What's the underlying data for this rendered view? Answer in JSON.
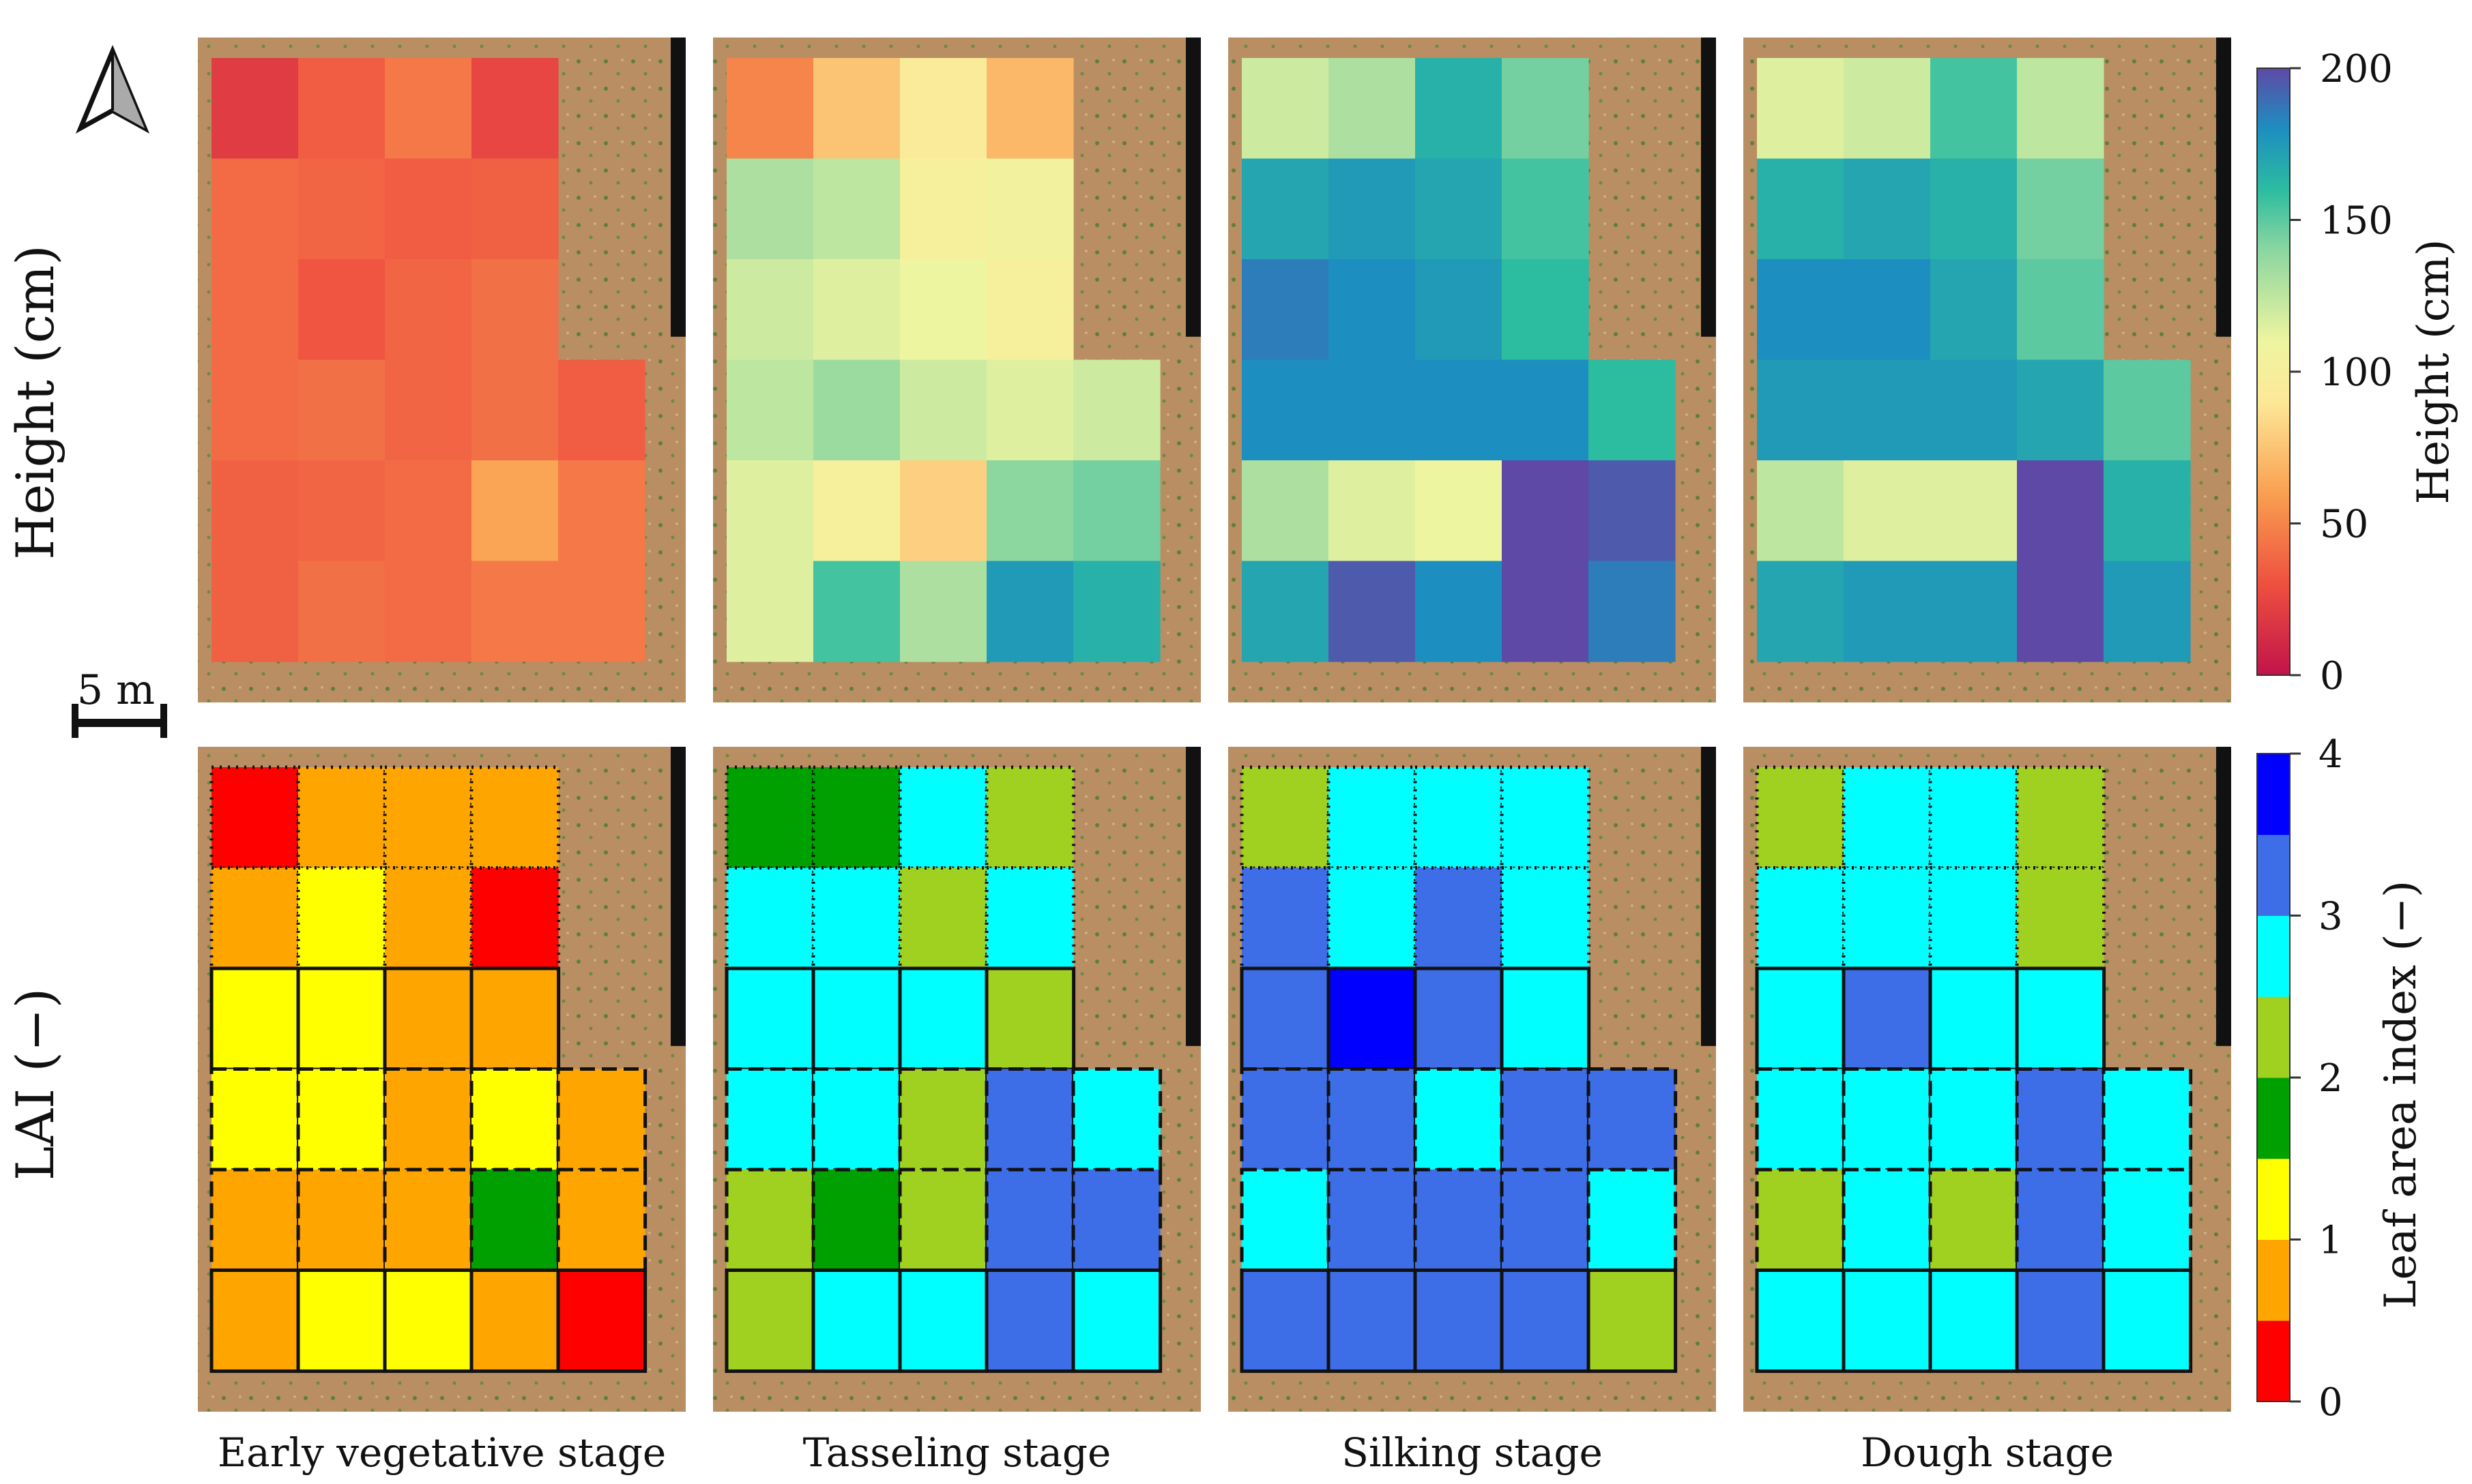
{
  "figure": {
    "row_labels": [
      "Height (cm)",
      "LAI (−)"
    ],
    "scale_bar_label": "5 m",
    "north_arrow": "north-arrow-icon"
  },
  "chart_data": [
    {
      "type": "heatmap",
      "title": "Height (cm)",
      "colorbar_label": "Height (cm)",
      "colorbar_ticks": [
        "0",
        "50",
        "100",
        "150",
        "200"
      ],
      "vlim": [
        0,
        200
      ],
      "colormap": "Spectral",
      "panels": [
        {
          "label": "Early vegetative stage",
          "grid": [
            [
              20,
              35,
              45,
              25
            ],
            [
              40,
              38,
              35,
              36
            ],
            [
              40,
              32,
              38,
              42
            ],
            [
              40,
              42,
              38,
              42,
              35
            ],
            [
              36,
              38,
              40,
              62,
              45
            ],
            [
              36,
              42,
              40,
              45,
              45
            ]
          ]
        },
        {
          "label": "Tasseling stage",
          "grid": [
            [
              50,
              75,
              95,
              70
            ],
            [
              130,
              125,
              100,
              105
            ],
            [
              120,
              115,
              110,
              100
            ],
            [
              125,
              135,
              120,
              115,
              120
            ],
            [
              115,
              100,
              80,
              140,
              145
            ],
            [
              115,
              155,
              130,
              175,
              165
            ]
          ]
        },
        {
          "label": "Silking stage",
          "grid": [
            [
              120,
              130,
              165,
              145
            ],
            [
              170,
              175,
              170,
              155
            ],
            [
              185,
              180,
              175,
              160
            ],
            [
              180,
              180,
              180,
              180,
              160
            ],
            [
              130,
              115,
              110,
              205,
              195
            ],
            [
              170,
              195,
              180,
              205,
              185
            ]
          ]
        },
        {
          "label": "Dough stage",
          "grid": [
            [
              115,
              120,
              155,
              125
            ],
            [
              165,
              170,
              165,
              145
            ],
            [
              180,
              180,
              170,
              150
            ],
            [
              175,
              175,
              175,
              170,
              150
            ],
            [
              125,
              115,
              115,
              200,
              165
            ],
            [
              170,
              175,
              175,
              205,
              175
            ]
          ]
        }
      ]
    },
    {
      "type": "heatmap",
      "title": "LAI (−)",
      "colorbar_label": "Leaf area index (−)",
      "colorbar_ticks": [
        "0",
        "1",
        "2",
        "3",
        "4"
      ],
      "vlim": [
        0,
        4
      ],
      "colormap_bins": [
        "#ff0000",
        "#ffa500",
        "#ffff00",
        "#00a000",
        "#a0d020",
        "#00ffff",
        "#3d6ee8",
        "#0000ff"
      ],
      "panels": [
        {
          "label": "Early vegetative stage",
          "grid": [
            [
              0.3,
              0.7,
              0.8,
              0.5
            ],
            [
              0.8,
              1.0,
              0.9,
              0.4
            ],
            [
              1.1,
              1.0,
              0.8,
              0.6
            ],
            [
              1.2,
              1.1,
              0.9,
              1.0,
              0.6
            ],
            [
              0.8,
              0.8,
              0.7,
              1.6,
              0.5
            ],
            [
              0.8,
              1.2,
              1.0,
              0.8,
              0.3
            ]
          ]
        },
        {
          "label": "Tasseling stage",
          "grid": [
            [
              1.8,
              1.6,
              2.8,
              2.4
            ],
            [
              2.8,
              2.6,
              2.0,
              2.6
            ],
            [
              2.6,
              2.8,
              2.7,
              2.4
            ],
            [
              2.6,
              2.5,
              2.2,
              3.0,
              2.8
            ],
            [
              2.4,
              1.9,
              2.2,
              3.0,
              3.0
            ],
            [
              2.4,
              2.7,
              2.6,
              3.0,
              2.6
            ]
          ]
        },
        {
          "label": "Silking stage",
          "grid": [
            [
              2.2,
              2.6,
              2.9,
              2.6
            ],
            [
              3.0,
              2.9,
              3.0,
              2.5
            ],
            [
              3.2,
              3.5,
              3.2,
              2.8
            ],
            [
              3.1,
              3.0,
              2.8,
              3.3,
              3.0
            ],
            [
              2.9,
              3.0,
              3.0,
              3.4,
              2.8
            ],
            [
              3.1,
              3.4,
              3.1,
              3.4,
              2.4
            ]
          ]
        },
        {
          "label": "Dough stage",
          "grid": [
            [
              2.0,
              2.7,
              2.6,
              2.2
            ],
            [
              2.6,
              2.7,
              2.6,
              2.2
            ],
            [
              2.8,
              3.0,
              2.9,
              2.6
            ],
            [
              2.7,
              2.8,
              2.8,
              3.0,
              2.6
            ],
            [
              2.2,
              2.6,
              2.1,
              3.0,
              2.7
            ],
            [
              2.7,
              2.9,
              2.8,
              3.0,
              2.6
            ]
          ]
        }
      ]
    }
  ]
}
